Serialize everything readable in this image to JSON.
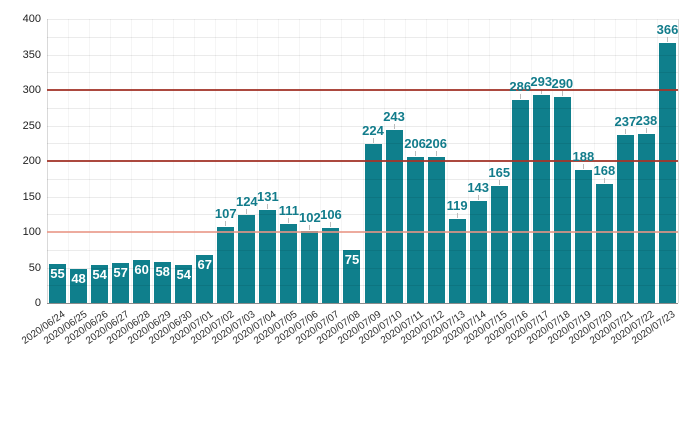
{
  "chart_data": {
    "type": "bar",
    "title": "",
    "xlabel": "",
    "ylabel": "",
    "categories": [
      "2020/06/24",
      "2020/06/25",
      "2020/06/26",
      "2020/06/27",
      "2020/06/28",
      "2020/06/29",
      "2020/06/30",
      "2020/07/01",
      "2020/07/02",
      "2020/07/03",
      "2020/07/04",
      "2020/07/05",
      "2020/07/06",
      "2020/07/07",
      "2020/07/08",
      "2020/07/09",
      "2020/07/10",
      "2020/07/11",
      "2020/07/12",
      "2020/07/13",
      "2020/07/14",
      "2020/07/15",
      "2020/07/16",
      "2020/07/17",
      "2020/07/18",
      "2020/07/19",
      "2020/07/20",
      "2020/07/21",
      "2020/07/22",
      "2020/07/23"
    ],
    "values": [
      55,
      48,
      54,
      57,
      60,
      58,
      54,
      67,
      107,
      124,
      131,
      111,
      102,
      106,
      75,
      224,
      243,
      206,
      206,
      119,
      143,
      165,
      286,
      293,
      290,
      188,
      168,
      237,
      238,
      366
    ],
    "ylim": [
      0,
      400
    ],
    "y_ticks": [
      0,
      50,
      100,
      150,
      200,
      250,
      300,
      350,
      400
    ],
    "minor_grid_step": 25,
    "grid_on": true,
    "legend_position": "none",
    "reference_lines": [
      {
        "value": 100,
        "color": "rgba(233,150,134,0.8)"
      },
      {
        "value": 200,
        "color": "rgba(163,53,42,0.9)"
      },
      {
        "value": 300,
        "color": "rgba(163,53,42,0.9)"
      }
    ],
    "colors": {
      "bar": "#0f7f8c",
      "value_label_outside": "#127c8b",
      "value_label_inside": "#ffffff",
      "h_gridline": "rgba(0,0,0,0.08)",
      "v_gridline": "rgba(0,0,0,0.04)",
      "plot_border": "rgba(0,0,0,0.15)",
      "x_axis_line": "#8c8c8c",
      "label_tick": "#bdbdbd",
      "y_tick_label": "#222222",
      "x_tick_label": "#2e2e2e"
    },
    "inside_label_threshold": 100
  }
}
